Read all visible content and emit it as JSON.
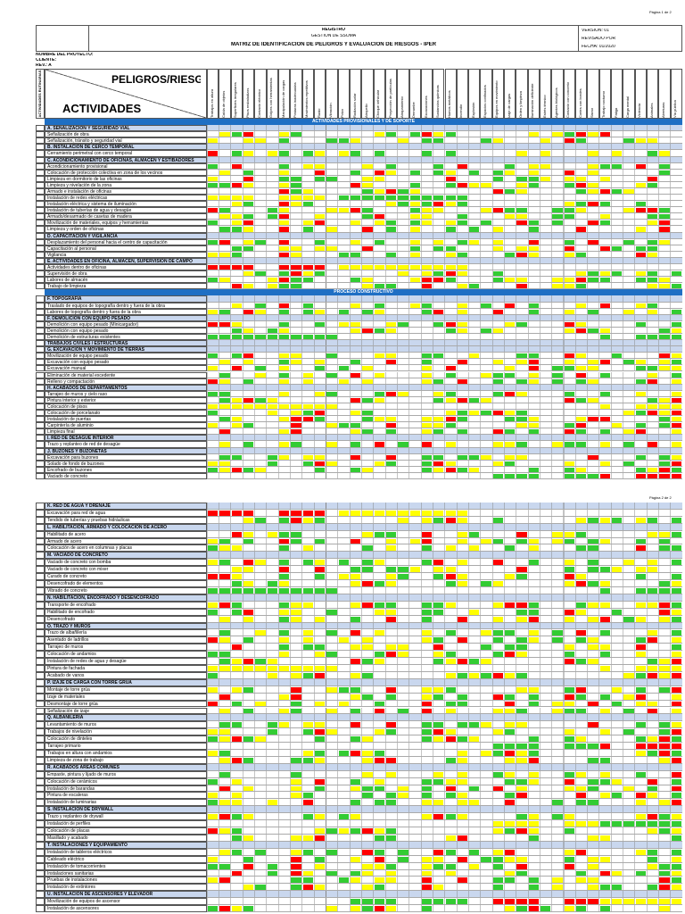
{
  "pages": [
    {
      "page_label": "Página 1 de 2",
      "header": {
        "registro": "REGISTRO",
        "area": "GESTION DE SSOMA",
        "title": "MATRIZ DE IDENTIFICACION DE PELIGROS Y EVALUACIÓN DE RIESGOS - IPER",
        "version": "VERSIÓN: 01",
        "revisado": "REVISADO POR",
        "fecha": "FECHA: 01/2020",
        "proyecto": "NOMBRE DEL PROYECTO:",
        "cliente": "CLIENTE:",
        "rev": "REV.: A",
        "peligros": "PELIGROS/RIESGOS",
        "actividades": "ACTIVIDADES",
        "rutinarias": "ACTIVIDADES RUTINARIAS"
      },
      "col_headers": [
        "Trabajos en altura",
        "Caída de objetos",
        "Superficies irregulares",
        "Pisos resbaladizos",
        "Contacto eléctrico",
        "Golpes con herramientas",
        "Manipulación de cargas",
        "Posturas inadecuadas",
        "Movimientos repetitivos",
        "Ruido",
        "Vibración",
        "Polvo",
        "Radiación solar",
        "Atropello",
        "Choque vehicular",
        "Proyección de partículas",
        "Atrapamiento",
        "Derrumbe",
        "Excavaciones",
        "Sustancias químicas",
        "Humos metálicos",
        "Incendio",
        "Explosión",
        "Espacios confinados",
        "Equipos en movimiento",
        "Izaje de cargas",
        "Orden y limpieza",
        "Iluminación deficiente",
        "Estrés térmico",
        "Agentes biológicos",
        "Contacto con concreto",
        "Cortes con bordes",
        "Sismo",
        "Trabajo nocturno",
        "Fatiga",
        "Carga mental",
        "Violencia",
        "Animales",
        "Aberturas",
        "Vía pública"
      ],
      "blocks": [
        {
          "band": "ACTIVIDADES PROVISIONALES Y DE SOPORTE"
        },
        {
          "section": "A. SEÑALIZACIÓN Y SEGURIDAD VIAL",
          "items": [
            "Señalización de obra",
            "Señalización, tránsito y seguridad vial"
          ]
        },
        {
          "section": "B. INSTALACIÓN DE CERCO TEMPORAL",
          "items": [
            "Cerramiento perimetral con cerco temporal"
          ]
        },
        {
          "section": "C. ACONDICIONAMIENTO DE OFICINAS, ALMACÉN Y ESTIBADORES",
          "items": [
            "Acondicionamiento provisional",
            "Colocación de protección colectiva en zona de los vecinos",
            "Limpieza en dormitorio de las oficinas",
            "Limpieza y nivelación de la zona",
            "Armado e instalación de oficinas",
            "Instalación de redes eléctricas",
            "Instalación eléctrica y sistema de iluminación",
            "Instalación de tuberías de agua y desagüe",
            "Armado/desarmado de casetas de madera",
            "Movilización de materiales, equipos y herramientas",
            "Limpieza y orden de oficinas"
          ]
        },
        {
          "section": "D. CAPACITACIÓN Y VIGILANCIA",
          "items": [
            "Desplazamiento del personal hacia el centro de capacitación",
            "Capacitación al personal",
            "Vigilancia"
          ]
        },
        {
          "section": "E. ACTIVIDADES EN OFICINA, ALMACÉN, SUPERVISIÓN DE CAMPO",
          "items": [
            "Actividades dentro de oficinas",
            "Supervisión de obra",
            "Labores de almacén",
            "Trabajo de limpieza"
          ]
        },
        {
          "band": "PROCESO CONSTRUCTIVO"
        },
        {
          "section": "F. TOPOGRAFÍA",
          "items": [
            "Traslado de equipos de topografía dentro y fuera de la obra",
            "Labores de topografía dentro y fuera de la obra"
          ]
        },
        {
          "section": "F. DEMOLICIÓN CON EQUIPO PESADO",
          "items": [
            "Demolición con equipo pesado (Minicargador)",
            "Demolición con equipo pesado",
            "Demolición de estructuras existentes"
          ]
        },
        {
          "section": "TRABAJOS CIVILES / ESTRUCTURAS",
          "items": []
        },
        {
          "section": "G. EXCAVACIÓN Y MOVIMIENTO DE TIERRAS",
          "items": [
            "Movilización de equipo pesado",
            "Excavación con equipo pesado",
            "Excavación manual",
            "Eliminación de material excedente",
            "Relleno y compactación"
          ]
        },
        {
          "section": "H. ACABADOS DE DEPARTAMENTOS",
          "items": [
            "Tarrajeo de muros y cielo raso",
            "Pintura interior y exterior",
            "Colocación de pisos",
            "Colocación de porcelanato",
            "Instalación de puertas",
            "Carpintería de aluminio",
            "Limpieza final"
          ]
        },
        {
          "section": "I. RED DE DESAGÜE INTERIOR",
          "items": [
            "Trazo y replanteo de red de desagüe"
          ]
        },
        {
          "section": "J. BUZONES Y BUZONETAS",
          "items": [
            "Excavación para buzones",
            "Solado de fondo de buzones",
            "Encofrado de buzones",
            "Vaciado de concreto"
          ]
        }
      ]
    },
    {
      "page_label": "Página 2 de 2",
      "blocks": [
        {
          "section": "K. RED DE AGUA Y DRENAJE",
          "items": [
            "Excavación para red de agua",
            "Tendido de tuberías y pruebas hidráulicas"
          ]
        },
        {
          "section": "L. HABILITACIÓN, ARMADO Y COLOCACIÓN DE ACERO",
          "items": [
            "Habilitado de acero",
            "Armado de acero",
            "Colocación de acero en columnas y placas"
          ]
        },
        {
          "section": "M. VACIADO DE CONCRETO",
          "items": [
            "Vaciado de concreto con bomba",
            "Vaciado de concreto con mixer",
            "Curado de concreto",
            "Desencofrado de elementos",
            "Vibrado de concreto"
          ]
        },
        {
          "section": "N. HABILITACIÓN, ENCOFRADO Y DESENCOFRADO",
          "items": [
            "Transporte de encofrado",
            "Habilitado de encofrado",
            "Desencofrado"
          ]
        },
        {
          "section": "O. TRAZO Y MUROS",
          "items": [
            "Trazo de albañilería",
            "Asentado de ladrillos",
            "Tarrajeo de muros",
            "Colocación de andamios",
            "Instalación de redes de agua y desagüe",
            "Pintura de fachada",
            "Acabado de vanos"
          ]
        },
        {
          "section": "P. IZAJE DE CARGA CON TORRE GRÚA",
          "items": [
            "Montaje de torre grúa",
            "Izaje de materiales",
            "Desmontaje de torre grúa",
            "Señalización de izaje"
          ]
        },
        {
          "section": "Q. ALBAÑILERÍA",
          "items": [
            "Levantamiento de muros",
            "Trabajos de nivelación",
            "Colocación de dinteles",
            "Tarrajeo primario",
            "Trabajos en altura con andamios",
            "Limpieza de zona de trabajo"
          ]
        },
        {
          "section": "R. ACABADOS ÁREAS COMUNES",
          "items": [
            "Empaste, pintura y lijado de muros",
            "Colocación de cerámicos",
            "Instalación de barandas",
            "Pintura de escaleras",
            "Instalación de luminarias"
          ]
        },
        {
          "section": "S. INSTALACIÓN DE DRYWALL",
          "items": [
            "Trazo y replanteo de drywall",
            "Instalación de perfiles",
            "Colocación de placas",
            "Masillado y acabado"
          ]
        },
        {
          "section": "T. INSTALACIONES Y EQUIPAMIENTO",
          "items": [
            "Instalación de tableros eléctricos",
            "Cableado eléctrico",
            "Instalación de tomacorrientes",
            "Instalaciones sanitarias",
            "Pruebas de instalaciones",
            "Instalación de extintores"
          ]
        },
        {
          "section": "U. INSTALACIÓN DE ASCENSORES Y ELEVADOR",
          "items": [
            "Movilización de equipos de ascensor",
            "Instalación de ascensores"
          ]
        }
      ]
    }
  ]
}
